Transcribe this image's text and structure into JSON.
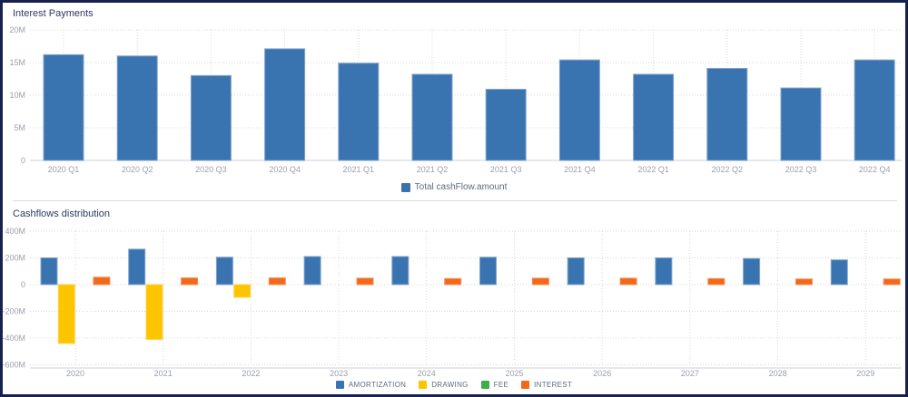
{
  "frame": {
    "border_color": "#17214d",
    "background": "#ffffff"
  },
  "colors": {
    "axis_text": "#9aa0ac",
    "title_text": "#2e3a62",
    "legend_text": "#5f6b7a",
    "grid_dotted": "#d8d8d8",
    "axis_line": "#cfd2d9"
  },
  "chart_data": [
    {
      "type": "bar",
      "title": "Interest Payments",
      "categories": [
        "2020 Q1",
        "2020 Q2",
        "2020 Q3",
        "2020 Q4",
        "2021 Q1",
        "2021 Q2",
        "2021 Q3",
        "2021 Q4",
        "2022 Q1",
        "2022 Q2",
        "2022 Q3",
        "2022 Q4"
      ],
      "values": [
        16.2,
        16.0,
        13.0,
        17.1,
        14.9,
        13.2,
        10.9,
        15.4,
        13.2,
        14.1,
        11.1,
        15.4
      ],
      "unit": "M",
      "ylim": [
        0,
        20
      ],
      "yticks": [
        {
          "label": "20M",
          "value": 20
        },
        {
          "label": "15M",
          "value": 15
        },
        {
          "label": "10M",
          "value": 10
        },
        {
          "label": "5M",
          "value": 5
        },
        {
          "label": "0",
          "value": 0
        }
      ],
      "bar_color": "#3a74b0",
      "bar_edge_color": "#7fa3cb",
      "grid": true,
      "legend_position": "bottom",
      "legend": [
        {
          "label": "Total cashFlow.amount",
          "color": "#3a74b0"
        }
      ]
    },
    {
      "type": "bar",
      "title": "Cashflows distribution",
      "categories": [
        "2020",
        "2021",
        "2022",
        "2023",
        "2024",
        "2025",
        "2026",
        "2027",
        "2028",
        "2029"
      ],
      "series": [
        {
          "name": "AMORTIZATION",
          "color": "#3a74b0",
          "edge": "#7fa3cb",
          "values": [
            200,
            265,
            205,
            210,
            210,
            205,
            200,
            200,
            195,
            185
          ]
        },
        {
          "name": "DRAWING",
          "color": "#fdc400",
          "edge": "#fdd54d",
          "values": [
            -440,
            -410,
            -95,
            0,
            0,
            0,
            0,
            0,
            0,
            0
          ]
        },
        {
          "name": "FEE",
          "color": "#3fae49",
          "edge": "#79c77f",
          "values": [
            0,
            0,
            0,
            0,
            0,
            0,
            0,
            0,
            0,
            0
          ]
        },
        {
          "name": "INTEREST",
          "color": "#f2691a",
          "edge": "#f68d52",
          "values": [
            55,
            50,
            50,
            48,
            45,
            48,
            48,
            45,
            42,
            42
          ]
        }
      ],
      "unit": "M",
      "ylim": [
        -600,
        400
      ],
      "yticks": [
        {
          "label": "400M",
          "value": 400
        },
        {
          "label": "200M",
          "value": 200
        },
        {
          "label": "0",
          "value": 0
        },
        {
          "label": "-200M",
          "value": -200
        },
        {
          "label": "-400M",
          "value": -400
        },
        {
          "label": "-600M",
          "value": -600
        }
      ],
      "grid": true,
      "legend_position": "bottom"
    }
  ]
}
